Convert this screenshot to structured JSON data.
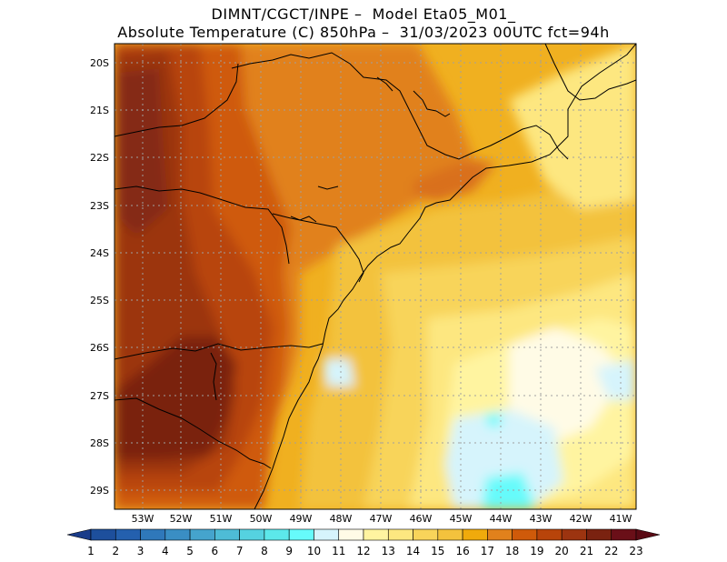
{
  "title": {
    "line1": "DIMNT/CGCT/INPE –  Model Eta05_M01_",
    "line2": "Absolute Temperature (C) 850hPa –  31/03/2023 00UTC fct=94h"
  },
  "map": {
    "lat_labels": [
      "20S",
      "21S",
      "22S",
      "23S",
      "24S",
      "25S",
      "26S",
      "27S",
      "28S",
      "29S"
    ],
    "lon_labels": [
      "53W",
      "52W",
      "51W",
      "50W",
      "49W",
      "48W",
      "47W",
      "46W",
      "45W",
      "44W",
      "43W",
      "42W",
      "41W"
    ],
    "gridlines": "dotted"
  },
  "colorbar": {
    "labels": [
      "1",
      "2",
      "3",
      "4",
      "5",
      "6",
      "7",
      "8",
      "9",
      "10",
      "11",
      "12",
      "13",
      "14",
      "15",
      "16",
      "17",
      "18",
      "19",
      "20",
      "21",
      "22",
      "23"
    ],
    "colors": [
      "#1a3c8a",
      "#1d4f9c",
      "#2460ae",
      "#2f78ba",
      "#3a8ec4",
      "#45a4cd",
      "#4ebcd6",
      "#55d2e0",
      "#5ce8ea",
      "#66fbfb",
      "#d6f4fc",
      "#fffbe6",
      "#fff4a0",
      "#fde780",
      "#f8d45a",
      "#f3c23d",
      "#f0aa0c",
      "#e1811c",
      "#cf5a0a",
      "#b8440a",
      "#9c3410",
      "#7a2210",
      "#6a0f18",
      "#5a0a14"
    ]
  }
}
